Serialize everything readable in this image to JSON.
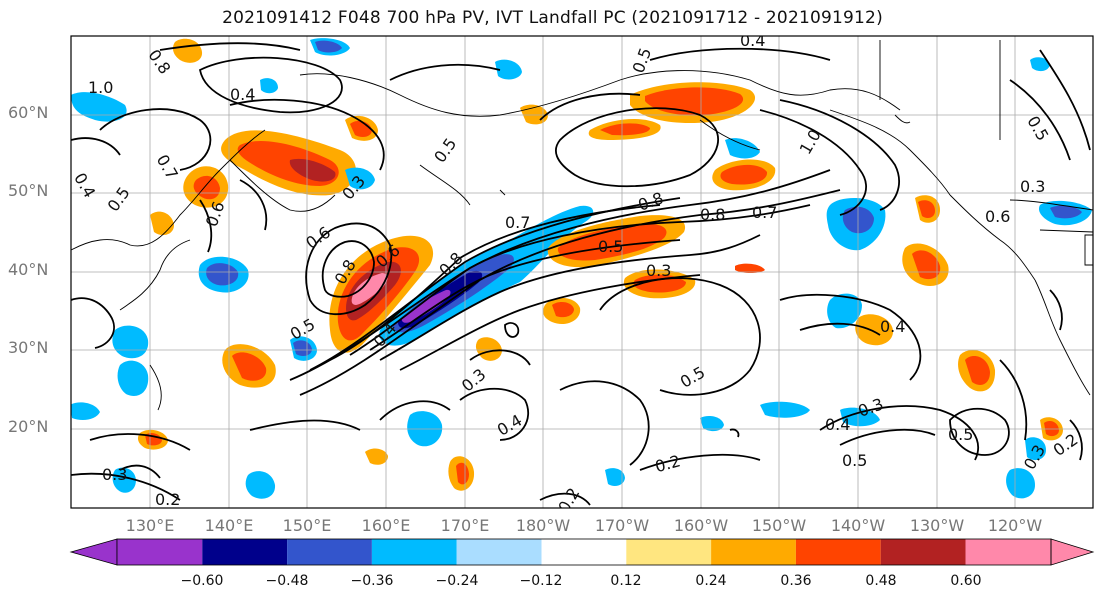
{
  "title": "2021091412 F048 700 hPa PV, IVT Landfall PC (2021091712 - 2021091912)",
  "lat_labels": [
    "60°N",
    "50°N",
    "40°N",
    "30°N",
    "20°N"
  ],
  "lon_labels": [
    "130°E",
    "140°E",
    "150°E",
    "160°E",
    "170°E",
    "180°W",
    "170°W",
    "160°W",
    "150°W",
    "140°W",
    "130°W",
    "120°W"
  ],
  "colorbar": {
    "ticks": [
      "−0.60",
      "−0.48",
      "−0.36",
      "−0.24",
      "−0.12",
      "0.12",
      "0.24",
      "0.36",
      "0.48",
      "0.60"
    ],
    "colors": [
      "#9933cc",
      "#00008b",
      "#3355cc",
      "#00bbff",
      "#aaddff",
      "#ffffff",
      "#ffe680",
      "#ffaa00",
      "#ff4400",
      "#b22222",
      "#ff88aa"
    ]
  },
  "contour_labels": [
    "1.0",
    "0.8",
    "0.4",
    "0.7",
    "0.5",
    "0.4",
    "0.5",
    "0.6",
    "0.6",
    "0.8",
    "0.5",
    "0.4",
    "0.8",
    "0.7",
    "0.5",
    "0.8",
    "0.7",
    "0.3",
    "1.0",
    "0.4",
    "0.5",
    "0.8",
    "0.3",
    "0.6",
    "0.5",
    "0.4",
    "0.3",
    "0.4",
    "0.5",
    "0.6",
    "0.3",
    "0.4",
    "0.5",
    "0.3",
    "0.5",
    "0.2",
    "0.2",
    "0.3",
    "0.2",
    "0.3",
    "0.2"
  ]
}
